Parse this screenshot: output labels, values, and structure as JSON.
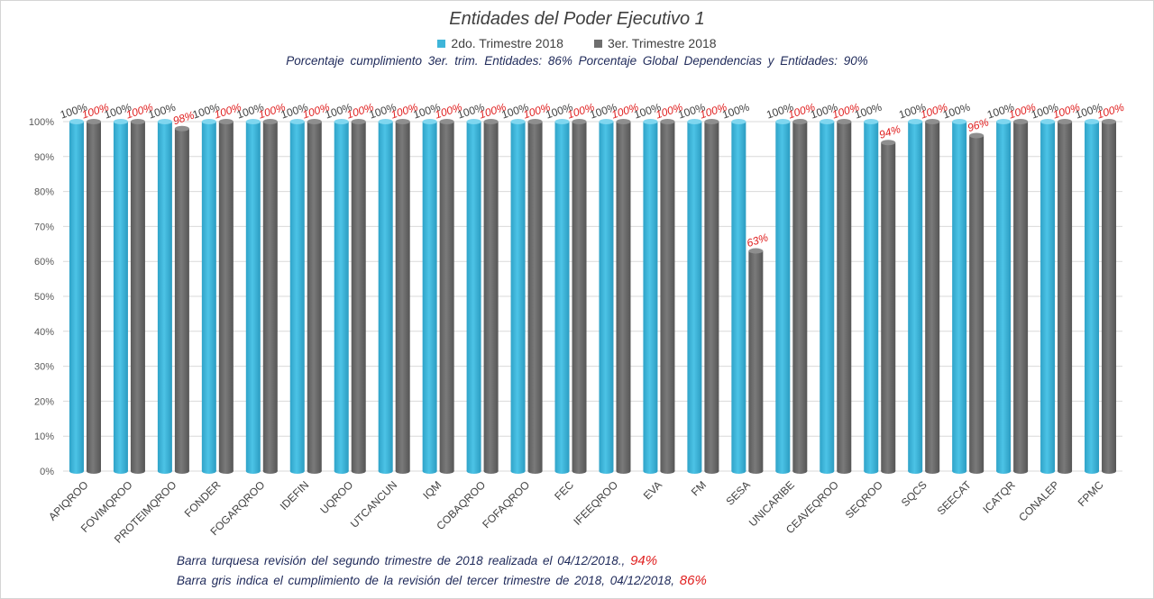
{
  "title": "Entidades del Poder Ejecutivo 1",
  "legend": [
    {
      "label": "2do. Trimestre 2018",
      "color": "#3fb5d9"
    },
    {
      "label": "3er. Trimestre 2018",
      "color": "#6e6e6e"
    }
  ],
  "subtitle": "Porcentaje cumplimiento  3er. trim. Entidades: 86%   Porcentaje Global Dependencias y Entidades: 90%",
  "notes": [
    {
      "text": "Barra turquesa revisión del segundo trimestre de 2018 realizada el 04/12/2018., ",
      "pct": "94%"
    },
    {
      "text": "Barra gris indica el cumplimiento de la revisión del tercer trimestre de 2018, 04/12/2018, ",
      "pct": "86%"
    }
  ],
  "chart_data": {
    "type": "bar",
    "categories": [
      "APIQROO",
      "FOVIMQROO",
      "PROTEIMQROO",
      "FONDER",
      "FOGARQROO",
      "IDEFIN",
      "UQROO",
      "UTCANCUN",
      "IQM",
      "COBAQROO",
      "FOFAQROO",
      "FEC",
      "IFEEQROO",
      "EVA",
      "FM",
      "SESA",
      "UNICARIBE",
      "CEAVEQROO",
      "SEQROO",
      "SQCS",
      "SEECAT",
      "ICATQR",
      "CONALEP",
      "FPMC"
    ],
    "series": [
      {
        "name": "2do. Trimestre 2018",
        "color": "#3fb5d9",
        "values": [
          100,
          100,
          100,
          100,
          100,
          100,
          100,
          100,
          100,
          100,
          100,
          100,
          100,
          100,
          100,
          100,
          100,
          100,
          100,
          100,
          100,
          100,
          100,
          100
        ],
        "labels": [
          "100%",
          "100%",
          "100%",
          "100%",
          "100%",
          "100%",
          "100%",
          "100%",
          "100%",
          "100%",
          "100%",
          "100%",
          "100%",
          "100%",
          "100%",
          "100%",
          "100%",
          "100%",
          "100%",
          "100%",
          "100%",
          "100%",
          "100%",
          "100%"
        ]
      },
      {
        "name": "3er. Trimestre 2018",
        "color": "#6e6e6e",
        "values": [
          100,
          100,
          98,
          100,
          100,
          100,
          100,
          100,
          100,
          100,
          100,
          100,
          100,
          100,
          100,
          63,
          100,
          100,
          94,
          100,
          96,
          100,
          100,
          100
        ],
        "labels": [
          "100%",
          "100%",
          "98%",
          "100%",
          "100%",
          "100%",
          "100%",
          "100%",
          "100%",
          "100%",
          "100%",
          "100%",
          "100%",
          "100%",
          "100%",
          "63%",
          "100%",
          "100%",
          "94%",
          "100%",
          "96%",
          "100%",
          "100%",
          "100%"
        ]
      }
    ],
    "ylim": [
      0,
      100
    ],
    "yticks": [
      "0%",
      "10%",
      "20%",
      "30%",
      "40%",
      "50%",
      "60%",
      "70%",
      "80%",
      "90%",
      "100%"
    ],
    "grid": true,
    "legend_position": "top"
  }
}
